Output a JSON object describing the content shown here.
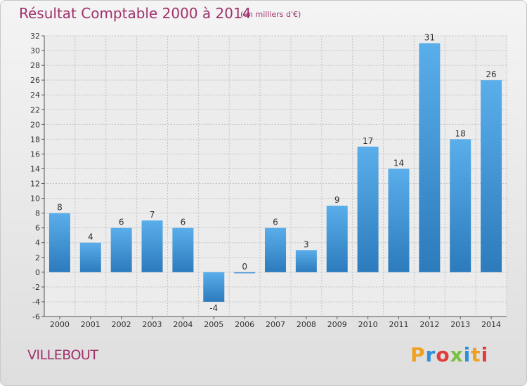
{
  "header": {
    "title": "Résultat Comptable 2000 à 2014",
    "subtitle": "(en milliers d'€)"
  },
  "footer": {
    "commune": "VILLEBOUT",
    "logo_text": "Proxiti"
  },
  "colors": {
    "title": "#a0306b",
    "bar_top": "#5aaeea",
    "bar_bottom": "#2c7bbd",
    "logo": [
      "#f0a020",
      "#2f8fd8",
      "#e23b3b",
      "#7ac142",
      "#2f8fd8",
      "#f0a020",
      "#e23b3b"
    ]
  },
  "chart_data": {
    "type": "bar",
    "categories": [
      "2000",
      "2001",
      "2002",
      "2003",
      "2004",
      "2005",
      "2006",
      "2007",
      "2008",
      "2009",
      "2010",
      "2011",
      "2012",
      "2013",
      "2014"
    ],
    "values": [
      8,
      4,
      6,
      7,
      6,
      -4,
      0,
      6,
      3,
      9,
      17,
      14,
      31,
      18,
      26
    ],
    "title": "Résultat Comptable 2000 à 2014",
    "subtitle": "(en milliers d'€)",
    "ylim": [
      -6,
      32
    ],
    "yticks": [
      -6,
      -4,
      -2,
      0,
      2,
      4,
      6,
      8,
      10,
      12,
      14,
      16,
      18,
      20,
      22,
      24,
      26,
      28,
      30,
      32
    ],
    "grid": true,
    "legend": "none"
  }
}
